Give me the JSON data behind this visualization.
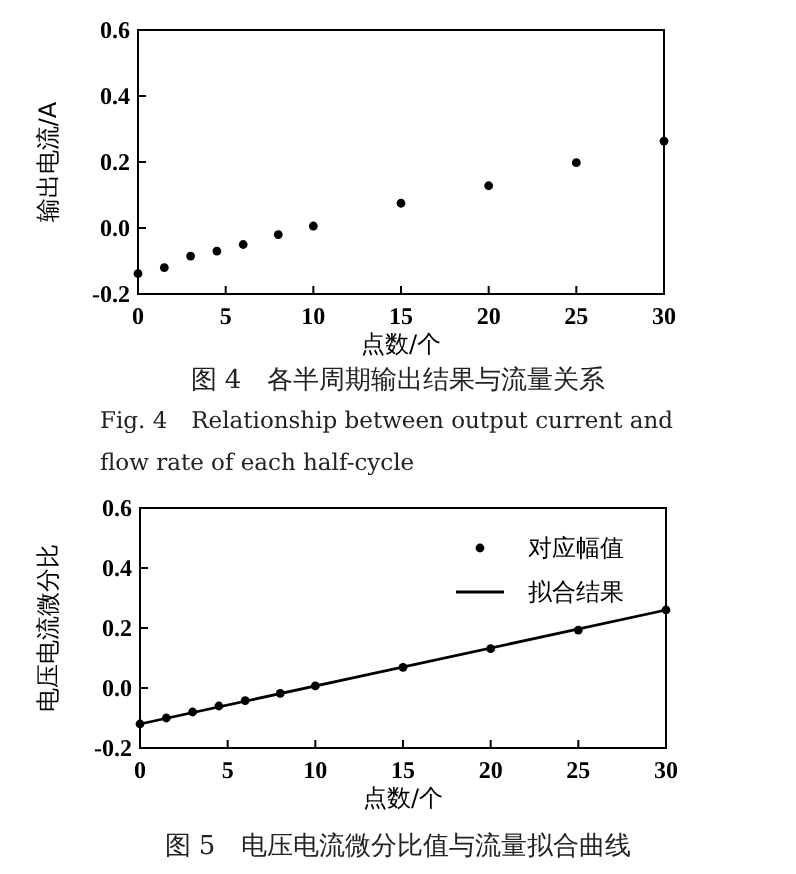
{
  "chart_data": [
    {
      "type": "scatter",
      "xlabel": "点数/个",
      "ylabel": "输出电流/A",
      "marker": "circle",
      "x": [
        0,
        1.5,
        3,
        4.5,
        6,
        8,
        10,
        15,
        20,
        25,
        30
      ],
      "series": [
        {
          "color": "#000000",
          "values": [
            -0.138,
            -0.12,
            -0.085,
            -0.07,
            -0.05,
            -0.02,
            0.006,
            0.075,
            0.128,
            0.198,
            0.263
          ]
        }
      ],
      "xlim": [
        0,
        30
      ],
      "ylim": [
        -0.2,
        0.6
      ],
      "xticks": [
        0,
        5,
        10,
        15,
        20,
        25,
        30
      ],
      "yticks": [
        -0.2,
        {
          "value": 0,
          "label": "0.0"
        },
        0.2,
        0.4,
        0.6
      ],
      "annotations": [
        "图 4　各半周期输出结果与流量关系",
        "Fig. 4　Relationship between output current and flow rate of each half-cycle"
      ]
    },
    {
      "type": "scatter",
      "xlabel": "点数/个",
      "ylabel": "电压电流微分比",
      "legend": "top right",
      "series": [
        {
          "name": "对应幅值",
          "type": "scatter",
          "marker": "circle",
          "color": "#000000",
          "x": [
            0,
            1.5,
            3,
            4.5,
            6,
            8,
            10,
            15,
            20,
            25,
            30
          ],
          "values": [
            -0.12,
            -0.1,
            -0.08,
            -0.06,
            -0.042,
            -0.018,
            0.007,
            0.069,
            0.131,
            0.193,
            0.26
          ]
        },
        {
          "name": "拟合结果",
          "type": "line",
          "marker": "none",
          "line_style": "solid",
          "color": "#000000",
          "x": [
            0,
            30
          ],
          "values": [
            -0.12,
            0.26
          ]
        }
      ],
      "xlim": [
        0,
        30
      ],
      "ylim": [
        -0.2,
        0.6
      ],
      "xticks": [
        0,
        5,
        10,
        15,
        20,
        25,
        30
      ],
      "yticks": [
        -0.2,
        {
          "value": 0,
          "label": "0.0"
        },
        0.2,
        0.4,
        0.6
      ],
      "annotations": [
        "图 5　电压电流微分比值与流量拟合曲线"
      ]
    }
  ]
}
